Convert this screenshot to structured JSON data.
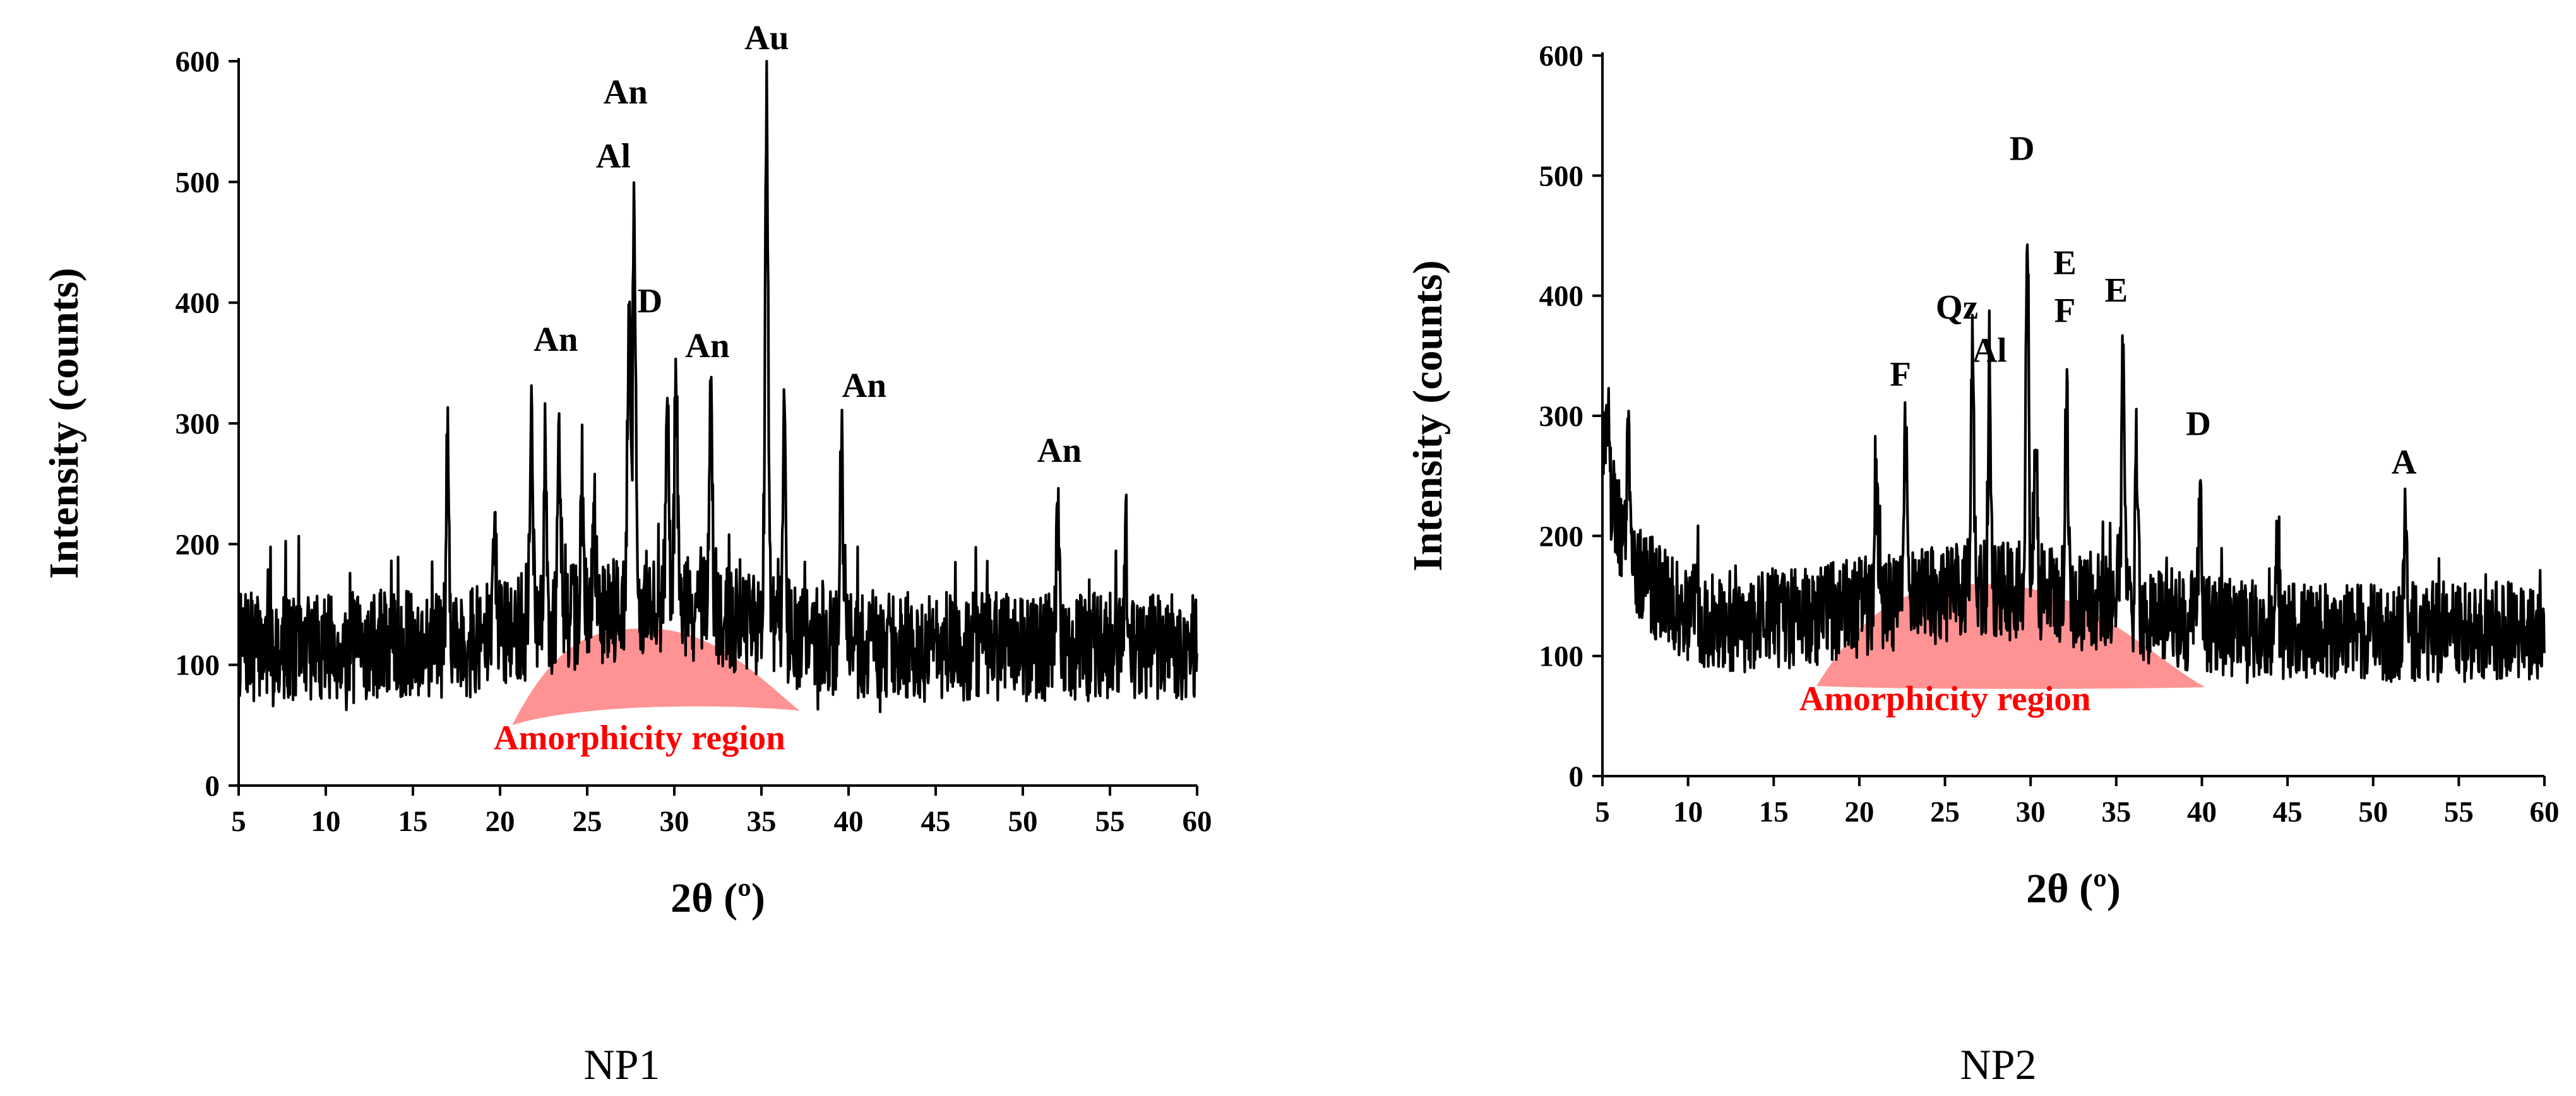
{
  "chart_data": [
    {
      "type": "line",
      "caption": "NP1",
      "xlabel": "2θ (º)",
      "ylabel": "Intensity (counts)",
      "xlim": [
        5,
        60
      ],
      "ylim": [
        0,
        600
      ],
      "xticks": [
        5,
        10,
        15,
        20,
        25,
        30,
        35,
        40,
        45,
        50,
        55,
        60
      ],
      "yticks": [
        0,
        100,
        200,
        300,
        400,
        500,
        600
      ],
      "grid": false,
      "line_color": "#000000",
      "baseline": 115,
      "noise": 45,
      "seed": 7,
      "peaks": [
        {
          "x": 17.0,
          "y": 304
        },
        {
          "x": 19.7,
          "y": 215
        },
        {
          "x": 21.8,
          "y": 313
        },
        {
          "x": 22.6,
          "y": 288
        },
        {
          "x": 23.4,
          "y": 302
        },
        {
          "x": 24.7,
          "y": 232
        },
        {
          "x": 25.4,
          "y": 230
        },
        {
          "x": 27.4,
          "y": 410
        },
        {
          "x": 27.7,
          "y": 478
        },
        {
          "x": 29.6,
          "y": 352
        },
        {
          "x": 30.1,
          "y": 355
        },
        {
          "x": 32.1,
          "y": 322
        },
        {
          "x": 35.3,
          "y": 592
        },
        {
          "x": 36.3,
          "y": 285
        },
        {
          "x": 39.6,
          "y": 287
        },
        {
          "x": 52.0,
          "y": 222
        },
        {
          "x": 55.9,
          "y": 208
        }
      ],
      "peak_labels": [
        {
          "text": "Au",
          "x": 35.3,
          "y": 610
        },
        {
          "text": "An",
          "x": 27.2,
          "y": 565
        },
        {
          "text": "Al",
          "x": 26.5,
          "y": 512
        },
        {
          "text": "D",
          "x": 28.6,
          "y": 392
        },
        {
          "text": "An",
          "x": 23.2,
          "y": 360
        },
        {
          "text": "An",
          "x": 31.9,
          "y": 355
        },
        {
          "text": "An",
          "x": 40.9,
          "y": 322
        },
        {
          "text": "An",
          "x": 52.1,
          "y": 268
        }
      ],
      "region": {
        "label": "Amorphicity region",
        "color": "#ff8080",
        "x_start": 20.7,
        "x_end": 37.2,
        "peak_x": 28.5,
        "top": 130,
        "bottom_left": 50,
        "bottom_mid": 68,
        "bottom_right": 62,
        "label_x": 28.0,
        "label_y": 30
      }
    },
    {
      "type": "line",
      "caption": "NP2",
      "xlabel": "2θ (º)",
      "ylabel": "Intensity (counts)",
      "xlim": [
        5,
        60
      ],
      "ylim": [
        0,
        600
      ],
      "xticks": [
        5,
        10,
        15,
        20,
        25,
        30,
        35,
        40,
        45,
        50,
        55,
        60
      ],
      "yticks": [
        0,
        100,
        200,
        300,
        400,
        500,
        600
      ],
      "grid": false,
      "line_color": "#000000",
      "baseline": 120,
      "noise": 42,
      "seed": 19,
      "start_decay": 140,
      "peaks": [
        {
          "x": 5.3,
          "y": 310
        },
        {
          "x": 6.5,
          "y": 300
        },
        {
          "x": 21.0,
          "y": 240
        },
        {
          "x": 22.7,
          "y": 285
        },
        {
          "x": 26.6,
          "y": 345
        },
        {
          "x": 27.6,
          "y": 322
        },
        {
          "x": 29.8,
          "y": 478
        },
        {
          "x": 30.3,
          "y": 288
        },
        {
          "x": 32.1,
          "y": 332
        },
        {
          "x": 35.4,
          "y": 362
        },
        {
          "x": 36.2,
          "y": 275
        },
        {
          "x": 39.9,
          "y": 243
        },
        {
          "x": 44.4,
          "y": 188
        },
        {
          "x": 51.9,
          "y": 225
        }
      ],
      "peak_labels": [
        {
          "text": "D",
          "x": 29.5,
          "y": 513
        },
        {
          "text": "E",
          "x": 32.0,
          "y": 418
        },
        {
          "text": "F",
          "x": 32.0,
          "y": 378
        },
        {
          "text": "E",
          "x": 35.0,
          "y": 395
        },
        {
          "text": "Qz",
          "x": 25.7,
          "y": 381
        },
        {
          "text": "Al",
          "x": 27.6,
          "y": 345
        },
        {
          "text": "F",
          "x": 22.4,
          "y": 325
        },
        {
          "text": "D",
          "x": 39.8,
          "y": 284
        },
        {
          "text": "A",
          "x": 51.8,
          "y": 252
        }
      ],
      "region": {
        "label": "Amorphicity region",
        "color": "#ff8080",
        "x_start": 17.5,
        "x_end": 40.2,
        "peak_x": 27.5,
        "top": 160,
        "bottom_left": 75,
        "bottom_mid": 72,
        "bottom_right": 74,
        "label_x": 25.0,
        "label_y": 55
      }
    }
  ]
}
